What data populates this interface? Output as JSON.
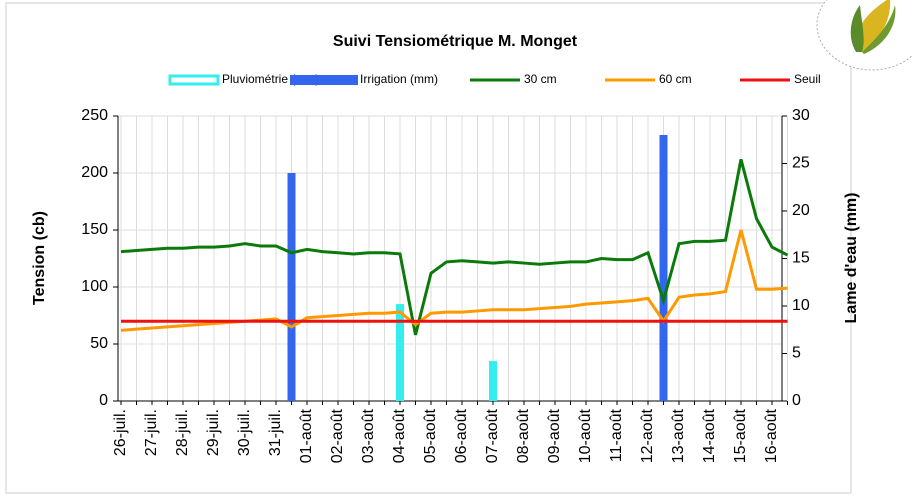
{
  "chart_data": {
    "type": "combo",
    "title": "Suivi Tensiométrique M. Monget",
    "y_label": "Tension (cb)",
    "y2_label": "Lame d'eau (mm)",
    "categories": [
      "26-juil.",
      null,
      "27-juil.",
      null,
      "28-juil.",
      null,
      "29-juil.",
      null,
      "30-juil.",
      null,
      "31-juil.",
      null,
      "01-août",
      null,
      "02-août",
      null,
      "03-août",
      null,
      "04-août",
      null,
      "05-août",
      null,
      "06-août",
      null,
      "07-août",
      null,
      "08-août",
      null,
      "09-août",
      null,
      "10-août",
      null,
      "11-août",
      null,
      "12-août",
      null,
      "13-août",
      null,
      "14-août",
      null,
      "15-août",
      null,
      "16-août",
      null
    ],
    "series": [
      {
        "name": "Pluviométrie (mm)",
        "kind": "bar",
        "axis": "y2",
        "color": "#33eeee",
        "values": [
          null,
          null,
          null,
          null,
          null,
          null,
          null,
          null,
          null,
          null,
          null,
          null,
          null,
          null,
          null,
          null,
          null,
          null,
          10.2,
          null,
          null,
          null,
          null,
          null,
          4.2,
          null,
          null,
          null,
          null,
          null,
          null,
          null,
          null,
          null,
          null,
          null,
          null,
          null,
          null,
          null,
          null,
          null,
          null,
          null
        ]
      },
      {
        "name": "Irrigation (mm)",
        "kind": "bar",
        "axis": "y2",
        "color": "#3366ee",
        "values": [
          null,
          null,
          null,
          null,
          null,
          null,
          null,
          null,
          null,
          null,
          null,
          24,
          null,
          null,
          null,
          null,
          null,
          null,
          null,
          null,
          null,
          null,
          null,
          null,
          null,
          null,
          null,
          null,
          null,
          null,
          null,
          null,
          null,
          null,
          null,
          28,
          null,
          null,
          null,
          null,
          null,
          null,
          null,
          null
        ]
      },
      {
        "name": "30 cm",
        "kind": "line",
        "color": "#0a7a0a",
        "values": [
          131,
          132,
          133,
          134,
          134,
          135,
          135,
          136,
          138,
          136,
          136,
          130,
          133,
          131,
          130,
          129,
          130,
          130,
          129,
          58,
          112,
          122,
          123,
          122,
          121,
          122,
          121,
          120,
          121,
          122,
          122,
          125,
          124,
          124,
          130,
          88,
          138,
          140,
          140,
          141,
          212,
          160,
          135,
          128
        ]
      },
      {
        "name": "60 cm",
        "kind": "line",
        "color": "#ff9900",
        "values": [
          62,
          63,
          64,
          65,
          66,
          67,
          68,
          69,
          70,
          71,
          72,
          65,
          73,
          74,
          75,
          76,
          77,
          77,
          78,
          67,
          77,
          78,
          78,
          79,
          80,
          80,
          80,
          81,
          82,
          83,
          85,
          86,
          87,
          88,
          90,
          70,
          91,
          93,
          94,
          96,
          150,
          98,
          98,
          99
        ]
      },
      {
        "name": "Seuil",
        "kind": "line",
        "color": "#ee1111",
        "values": [
          70,
          70,
          70,
          70,
          70,
          70,
          70,
          70,
          70,
          70,
          70,
          70,
          70,
          70,
          70,
          70,
          70,
          70,
          70,
          70,
          70,
          70,
          70,
          70,
          70,
          70,
          70,
          70,
          70,
          70,
          70,
          70,
          70,
          70,
          70,
          70,
          70,
          70,
          70,
          70,
          70,
          70,
          70,
          70
        ]
      }
    ],
    "ylim": [
      0,
      250
    ],
    "yticks": [
      0,
      50,
      100,
      150,
      200,
      250
    ],
    "y2lim": [
      0,
      30
    ],
    "y2ticks": [
      0,
      5,
      10,
      15,
      20,
      25,
      30
    ],
    "grid": true
  }
}
